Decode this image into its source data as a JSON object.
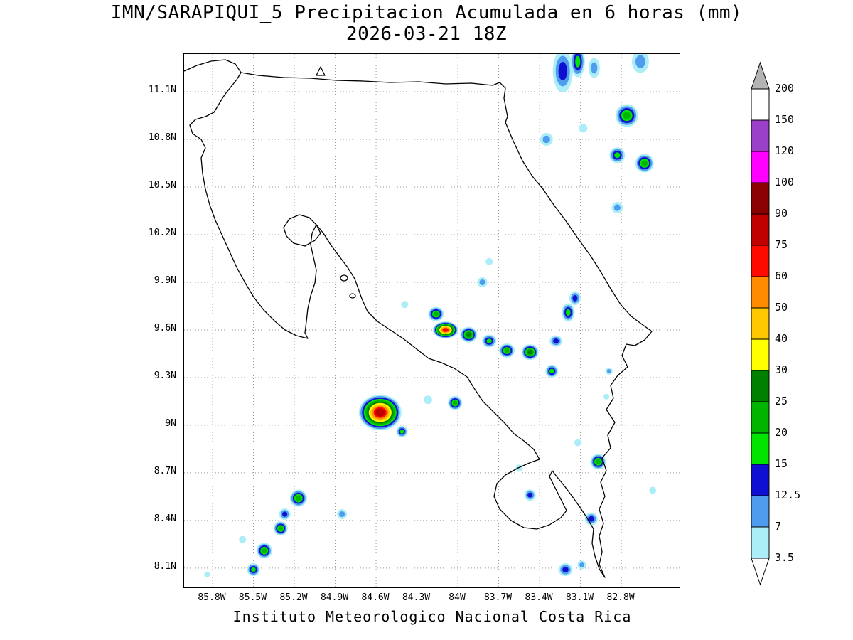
{
  "title": {
    "line1": "IMN/SARAPIQUI_5 Precipitacion Acumulada en 6 horas (mm)",
    "line2": "2026-03-21 18Z"
  },
  "footer": "Instituto Meteorologico Nacional Costa Rica",
  "chart_data": {
    "type": "heatmap",
    "title": "IMN/SARAPIQUI_5 Precipitacion Acumulada en 6 horas (mm)",
    "subtitle": "2026-03-21 18Z",
    "units": "mm",
    "grid": true,
    "legend_position": "right",
    "lon_range_W": [
      86.01,
      82.37
    ],
    "lat_range_N": [
      7.98,
      11.34
    ],
    "x_ticks": [
      {
        "v": 85.8,
        "label": "85.8W"
      },
      {
        "v": 85.5,
        "label": "85.5W"
      },
      {
        "v": 85.2,
        "label": "85.2W"
      },
      {
        "v": 84.9,
        "label": "84.9W"
      },
      {
        "v": 84.6,
        "label": "84.6W"
      },
      {
        "v": 84.3,
        "label": "84.3W"
      },
      {
        "v": 84.0,
        "label": "84W"
      },
      {
        "v": 83.7,
        "label": "83.7W"
      },
      {
        "v": 83.4,
        "label": "83.4W"
      },
      {
        "v": 83.1,
        "label": "83.1W"
      },
      {
        "v": 82.8,
        "label": "82.8W"
      }
    ],
    "y_ticks": [
      {
        "v": 11.1,
        "label": "11.1N"
      },
      {
        "v": 10.8,
        "label": "10.8N"
      },
      {
        "v": 10.5,
        "label": "10.5N"
      },
      {
        "v": 10.2,
        "label": "10.2N"
      },
      {
        "v": 9.9,
        "label": "9.9N"
      },
      {
        "v": 9.6,
        "label": "9.6N"
      },
      {
        "v": 9.3,
        "label": "9.3N"
      },
      {
        "v": 9.0,
        "label": "9N"
      },
      {
        "v": 8.7,
        "label": "8.7N"
      },
      {
        "v": 8.4,
        "label": "8.4N"
      },
      {
        "v": 8.1,
        "label": "8.1N"
      }
    ],
    "levels": [
      {
        "v": 3.5,
        "label": "3.5",
        "color": "#aceef7"
      },
      {
        "v": 7,
        "label": "7",
        "color": "#4f9bee"
      },
      {
        "v": 12.5,
        "label": "12.5",
        "color": "#0f0fd2"
      },
      {
        "v": 15,
        "label": "15",
        "color": "#00e400"
      },
      {
        "v": 20,
        "label": "20",
        "color": "#00b400"
      },
      {
        "v": 25,
        "label": "25",
        "color": "#008000"
      },
      {
        "v": 30,
        "label": "30",
        "color": "#ffff00"
      },
      {
        "v": 40,
        "label": "40",
        "color": "#ffc800"
      },
      {
        "v": 50,
        "label": "50",
        "color": "#ff8c00"
      },
      {
        "v": 60,
        "label": "60",
        "color": "#ff0a00"
      },
      {
        "v": 75,
        "label": "75",
        "color": "#c00000"
      },
      {
        "v": 90,
        "label": "90",
        "color": "#8b0000"
      },
      {
        "v": 100,
        "label": "100",
        "color": "#ff00ff"
      },
      {
        "v": 120,
        "label": "120",
        "color": "#9b40c8"
      },
      {
        "v": 150,
        "label": "150",
        "color": "#ffffff"
      },
      {
        "v": 200,
        "label": "200",
        "color": "#b4b4b4"
      }
    ],
    "colorbar_below_color": "#ffffff",
    "cells_format": [
      "lon_W",
      "lat_N",
      "rx_px",
      "ry_px",
      "peak_mm"
    ],
    "cells": [
      [
        83.23,
        11.23,
        14,
        30,
        12.5
      ],
      [
        83.12,
        11.29,
        10,
        22,
        15
      ],
      [
        83.0,
        11.25,
        8,
        14,
        7
      ],
      [
        82.66,
        11.29,
        12,
        16,
        7
      ],
      [
        82.76,
        10.95,
        16,
        16,
        20
      ],
      [
        83.35,
        10.8,
        9,
        9,
        7
      ],
      [
        83.08,
        10.87,
        6,
        6,
        3.5
      ],
      [
        82.83,
        10.7,
        11,
        11,
        15
      ],
      [
        82.63,
        10.65,
        13,
        13,
        20
      ],
      [
        82.83,
        10.37,
        8,
        8,
        7
      ],
      [
        83.77,
        10.03,
        5,
        5,
        3.5
      ],
      [
        83.82,
        9.9,
        7,
        7,
        7
      ],
      [
        84.39,
        9.76,
        5,
        5,
        3.5
      ],
      [
        84.16,
        9.7,
        11,
        10,
        20
      ],
      [
        84.09,
        9.6,
        18,
        12,
        60
      ],
      [
        83.92,
        9.57,
        12,
        11,
        25
      ],
      [
        83.77,
        9.53,
        10,
        9,
        15
      ],
      [
        83.64,
        9.47,
        11,
        10,
        20
      ],
      [
        83.47,
        9.46,
        12,
        11,
        25
      ],
      [
        83.28,
        9.53,
        9,
        8,
        12.5
      ],
      [
        83.19,
        9.71,
        9,
        13,
        15
      ],
      [
        83.14,
        9.8,
        8,
        10,
        12.5
      ],
      [
        83.31,
        9.34,
        9,
        9,
        15
      ],
      [
        82.89,
        9.34,
        5,
        5,
        7
      ],
      [
        82.91,
        9.18,
        4,
        4,
        3.5
      ],
      [
        84.57,
        9.08,
        30,
        25,
        75
      ],
      [
        84.41,
        8.96,
        8,
        8,
        15
      ],
      [
        84.22,
        9.16,
        6,
        6,
        3.5
      ],
      [
        84.02,
        9.14,
        10,
        10,
        20
      ],
      [
        83.12,
        8.89,
        5,
        5,
        3.5
      ],
      [
        82.97,
        8.77,
        11,
        11,
        20
      ],
      [
        83.47,
        8.56,
        8,
        8,
        12.5
      ],
      [
        83.55,
        8.73,
        5,
        5,
        3.5
      ],
      [
        83.02,
        8.41,
        9,
        9,
        12.5
      ],
      [
        82.57,
        8.59,
        5,
        5,
        3.5
      ],
      [
        85.17,
        8.54,
        12,
        12,
        20
      ],
      [
        85.27,
        8.44,
        8,
        8,
        12.5
      ],
      [
        85.3,
        8.35,
        10,
        10,
        20
      ],
      [
        84.85,
        8.44,
        7,
        7,
        7
      ],
      [
        85.58,
        8.28,
        5,
        5,
        3.5
      ],
      [
        85.42,
        8.21,
        11,
        11,
        20
      ],
      [
        85.5,
        8.09,
        9,
        9,
        15
      ],
      [
        85.84,
        8.06,
        4,
        4,
        3.5
      ],
      [
        83.21,
        8.09,
        10,
        9,
        12.5
      ],
      [
        83.09,
        8.12,
        6,
        6,
        7
      ]
    ],
    "basemap_paths": [
      "M 0,24 L 18,16 L 38,10 L 58,8 L 72,14 L 80,26 L 104,30 L 140,33 L 178,34 L 214,37 L 252,38 L 290,40 L 330,39 L 368,42 L 404,41 L 434,44 L 444,40 L 452,48 L 450,62 L 455,88 L 452,96 L 462,120 L 476,150 L 490,172 L 505,190 L 520,212 L 538,236 L 556,262 L 572,284 L 586,306 L 600,330 L 614,352 L 628,368 L 644,380 L 658,390 L 648,402 L 634,410 L 622,408 L 616,424 L 624,440 L 610,452 L 600,466 L 604,484 L 594,500 L 606,518 L 596,536 L 600,554 L 588,568 L 594,586 L 586,602 L 592,622 L 584,640 L 590,660 L 584,678 L 588,700 L 584,718 L 592,736 L 584,724 L 578,706 L 574,688 L 576,668 L 568,654 L 556,636 L 546,622 L 534,606 L 524,594 L 518,586 L 514,594 L 522,610 L 530,626 L 538,642 L 530,652 L 514,662 L 496,668 L 478,666 L 460,656 L 444,640 L 436,622 L 440,604 L 452,592 L 470,582 L 488,574 L 500,570 L 492,556 L 478,544 L 464,534 L 452,520 L 436,504 L 420,488 L 408,470 L 398,454 L 380,442 L 362,434 L 344,428 L 326,414 L 308,400 L 290,388 L 272,376 L 258,362 L 250,344 L 240,316 L 230,300 L 218,284 L 206,268 L 196,252 L 186,240 L 180,252 L 178,268 L 182,286 L 186,304 L 184,322 L 178,340 L 174,358 L 172,376 L 170,392 L 174,400 L 158,396 L 142,388 L 128,376 L 112,360 L 98,342 L 86,322 L 74,300 L 64,278 L 54,256 L 44,234 L 36,212 L 30,190 L 26,168 L 24,146 L 30,132 L 24,120 L 12,112 L 8,100 L 16,92 L 30,88 L 42,82 L 48,72 L 54,62 L 58,56 L 66,46 L 74,36 L 80,26",
      "M 140,244 L 148,232 L 162,226 L 176,230 L 186,240 L 192,252 L 184,262 L 170,270 L 154,266 L 144,256 Z",
      "M 186,30 L 192,18 L 198,30 Z",
      "M 220,315 a 5,4 0 1 0 10,0 a 5,4 0 1 0 -10,0",
      "M 233,340 a 4,3 0 1 0 8,0 a 4,3 0 1 0 -8,0"
    ]
  }
}
